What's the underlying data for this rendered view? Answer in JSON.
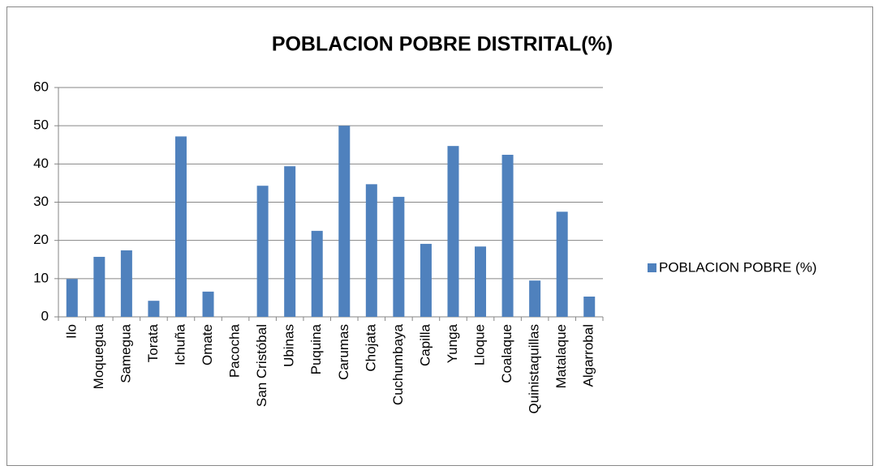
{
  "chart_data": {
    "type": "bar",
    "title": "POBLACION POBRE DISTRITAL(%)",
    "categories": [
      "Ilo",
      "Moquegua",
      "Samegua",
      "Torata",
      "Ichuña",
      "Omate",
      "Pacocha",
      "San Cristóbal",
      "Ubinas",
      "Puquina",
      "Carumas",
      "Chojata",
      "Cuchumbaya",
      "Capilla",
      "Yunga",
      "Lloque",
      "Coalaque",
      "Quinistaquillas",
      "Matalaque",
      "Algarrobal"
    ],
    "series": [
      {
        "name": "POBLACION POBRE (%)",
        "color": "#4f81bd",
        "values": [
          9.9,
          15.7,
          17.4,
          4.2,
          47.2,
          6.6,
          0,
          34.3,
          39.4,
          22.5,
          50.0,
          34.7,
          31.4,
          19.1,
          44.7,
          18.4,
          42.4,
          9.5,
          27.5,
          5.3
        ]
      }
    ],
    "ylim": [
      0,
      60
    ],
    "yticks": [
      0,
      10,
      20,
      30,
      40,
      50,
      60
    ],
    "grid": true,
    "legend": "right"
  }
}
